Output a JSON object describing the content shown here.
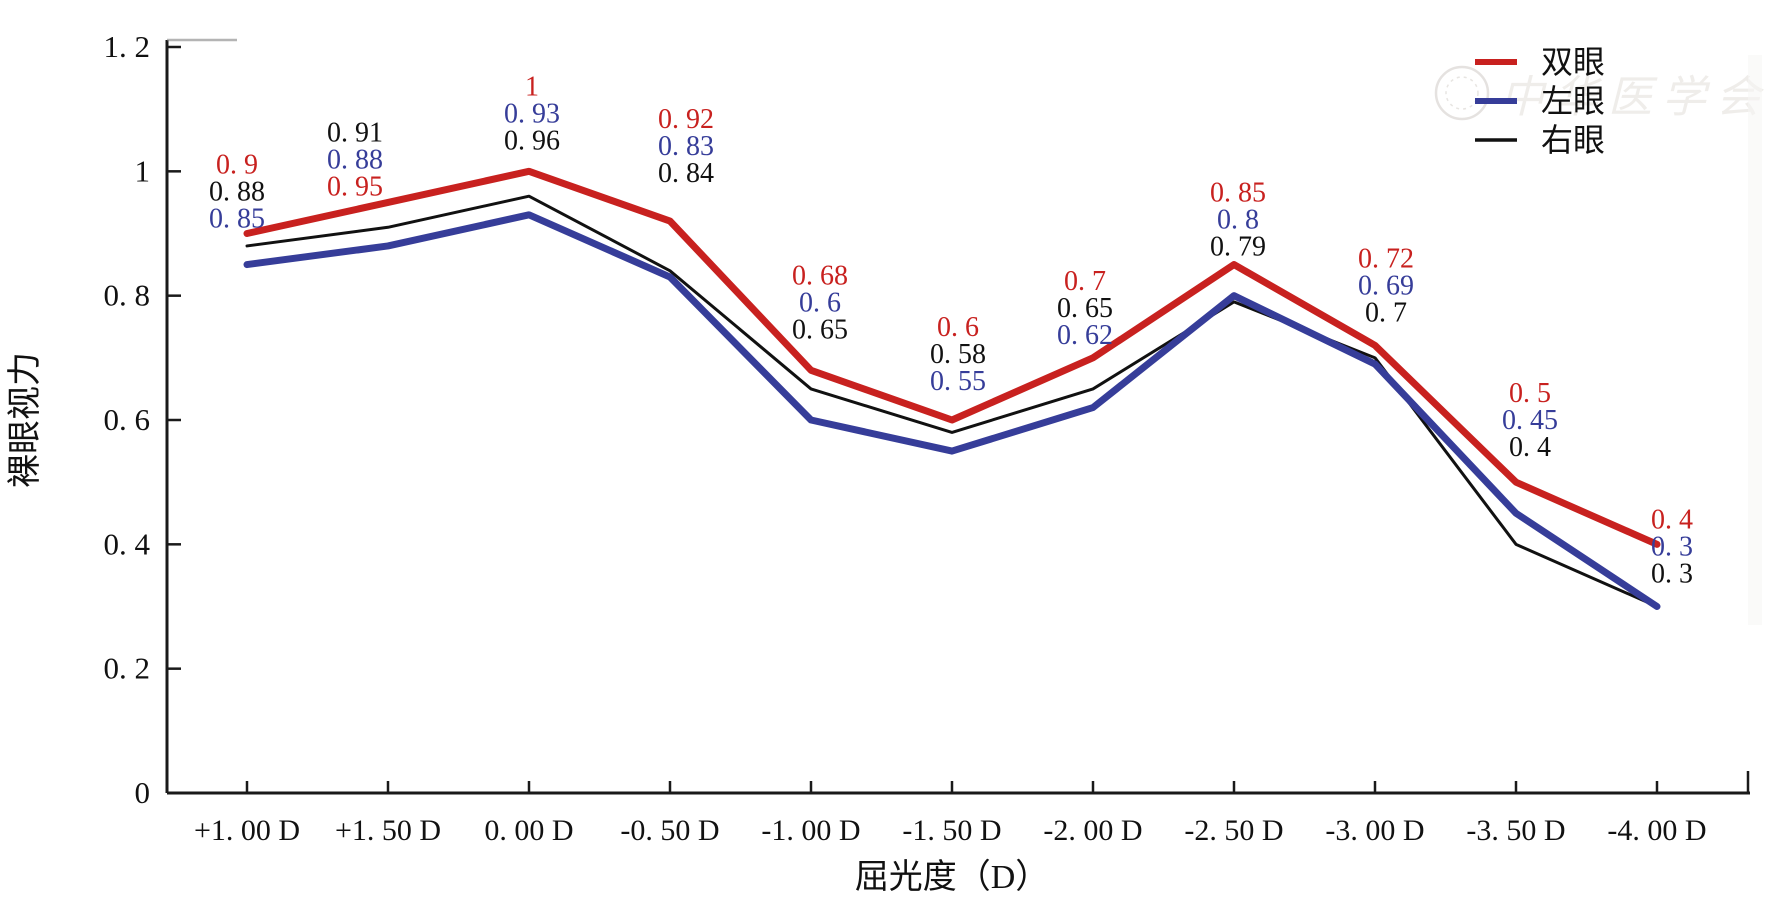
{
  "figure": {
    "background": "#ffffff",
    "watermark": {
      "text": "中华医学会",
      "color": "#d8d3ce"
    }
  },
  "chart_data": {
    "type": "line",
    "title": "",
    "xlabel": "屈光度（D）",
    "ylabel": "裸眼视力",
    "categories": [
      "+1.00 D",
      "+1.50 D",
      "0.00 D",
      "-0.50 D",
      "-1.00 D",
      "-1.50 D",
      "-2.00 D",
      "-2.50 D",
      "-3.00 D",
      "-3.50 D",
      "-4.00 D"
    ],
    "ylim": [
      0,
      1.2
    ],
    "y_ticks": [
      0,
      0.2,
      0.4,
      0.6,
      0.8,
      1,
      1.2
    ],
    "grid": false,
    "legend_position": "upper right",
    "series": [
      {
        "name": "双眼",
        "slug": "both-eyes",
        "color": "#c8211f",
        "line_width": 7,
        "values": [
          0.9,
          0.95,
          1,
          0.92,
          0.68,
          0.6,
          0.7,
          0.85,
          0.72,
          0.5,
          0.4
        ]
      },
      {
        "name": "左眼",
        "slug": "left-eye",
        "color": "#363d99",
        "line_width": 7,
        "values": [
          0.85,
          0.88,
          0.93,
          0.83,
          0.6,
          0.55,
          0.62,
          0.8,
          0.69,
          0.45,
          0.3
        ]
      },
      {
        "name": "右眼",
        "slug": "right-eye",
        "color": "#111111",
        "line_width": 3,
        "values": [
          0.88,
          0.91,
          0.96,
          0.84,
          0.65,
          0.58,
          0.65,
          0.79,
          0.7,
          0.4,
          0.3
        ]
      }
    ],
    "point_label_order": [
      [
        0,
        2,
        1
      ],
      [
        2,
        1,
        0
      ],
      [
        0,
        1,
        2
      ],
      [
        0,
        1,
        2
      ],
      [
        0,
        1,
        2
      ],
      [
        0,
        2,
        1
      ],
      [
        0,
        2,
        1
      ],
      [
        0,
        1,
        2
      ],
      [
        0,
        1,
        2
      ],
      [
        0,
        1,
        2
      ],
      [
        0,
        1,
        2
      ]
    ],
    "point_label_dx": [
      -10,
      -33,
      3,
      16,
      9,
      6,
      -8,
      4,
      11,
      14,
      15
    ],
    "point_label_dy": [
      8,
      7,
      -8,
      -25,
      -18,
      -16,
      0,
      5,
      -10,
      -12,
      52
    ]
  }
}
